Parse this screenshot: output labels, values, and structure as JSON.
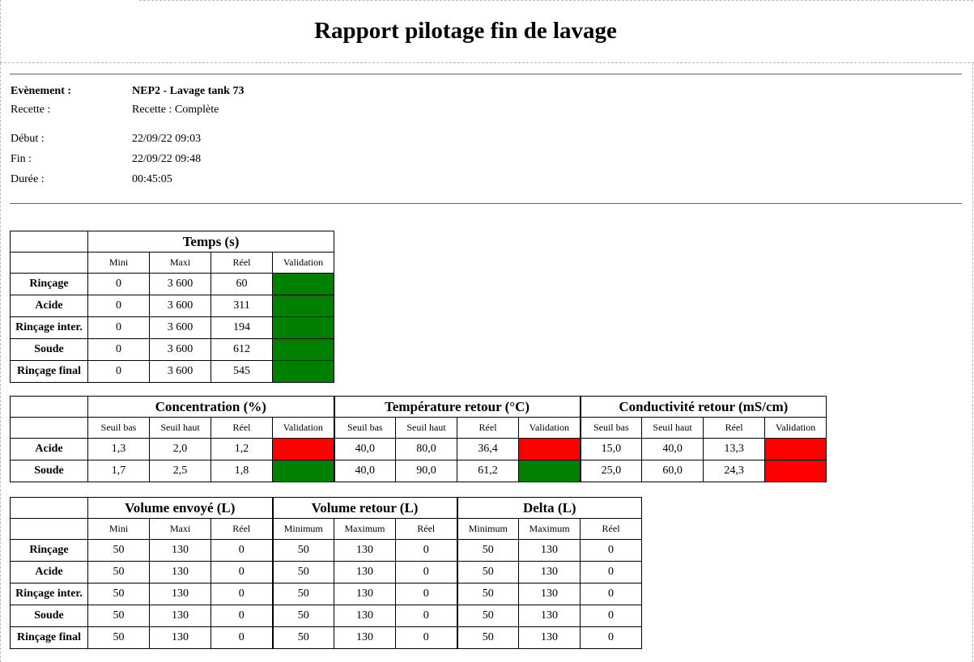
{
  "title": "Rapport pilotage fin de lavage",
  "info": {
    "event_label": "Evènement :",
    "event_value": "NEP2 - Lavage tank 73",
    "recipe_label": "Recette :",
    "recipe_value": "Recette : Complète",
    "start_label": "Début :",
    "start_value": "22/09/22 09:03",
    "end_label": "Fin :",
    "end_value": "22/09/22 09:48",
    "duration_label": "Durée :",
    "duration_value": "00:45:05"
  },
  "colors": {
    "ok": "#008000",
    "ko": "#ff0000"
  },
  "temps": {
    "title": "Temps (s)",
    "cols": [
      "Mini",
      "Maxi",
      "Réel",
      "Validation"
    ],
    "rows": [
      {
        "label": "Rinçage",
        "mini": "0",
        "maxi": "3 600",
        "reel": "60",
        "validation": "ok"
      },
      {
        "label": "Acide",
        "mini": "0",
        "maxi": "3 600",
        "reel": "311",
        "validation": "ok"
      },
      {
        "label": "Rinçage inter.",
        "mini": "0",
        "maxi": "3 600",
        "reel": "194",
        "validation": "ok"
      },
      {
        "label": "Soude",
        "mini": "0",
        "maxi": "3 600",
        "reel": "612",
        "validation": "ok"
      },
      {
        "label": "Rinçage final",
        "mini": "0",
        "maxi": "3 600",
        "reel": "545",
        "validation": "ok"
      }
    ]
  },
  "chimie": {
    "groups": [
      "Concentration (%)",
      "Température retour (°C)",
      "Conductivité retour (mS/cm)"
    ],
    "cols": [
      "Seuil bas",
      "Seuil haut",
      "Réel",
      "Validation"
    ],
    "rows": [
      {
        "label": "Acide",
        "concentration": {
          "bas": "1,3",
          "haut": "2,0",
          "reel": "1,2",
          "validation": "ko"
        },
        "temperature": {
          "bas": "40,0",
          "haut": "80,0",
          "reel": "36,4",
          "validation": "ko"
        },
        "conductivite": {
          "bas": "15,0",
          "haut": "40,0",
          "reel": "13,3",
          "validation": "ko"
        }
      },
      {
        "label": "Soude",
        "concentration": {
          "bas": "1,7",
          "haut": "2,5",
          "reel": "1,8",
          "validation": "ok"
        },
        "temperature": {
          "bas": "40,0",
          "haut": "90,0",
          "reel": "61,2",
          "validation": "ok"
        },
        "conductivite": {
          "bas": "25,0",
          "haut": "60,0",
          "reel": "24,3",
          "validation": "ko"
        }
      }
    ]
  },
  "volumes": {
    "groups": [
      "Volume envoyé (L)",
      "Volume retour (L)",
      "Delta (L)"
    ],
    "cols_envoye": [
      "Mini",
      "Maxi",
      "Réel"
    ],
    "cols_retour": [
      "Minimum",
      "Maximum",
      "Réel"
    ],
    "cols_delta": [
      "Minimum",
      "Maximum",
      "Réel"
    ],
    "rows": [
      {
        "label": "Rinçage",
        "v": [
          "50",
          "130",
          "0",
          "50",
          "130",
          "0",
          "50",
          "130",
          "0"
        ]
      },
      {
        "label": "Acide",
        "v": [
          "50",
          "130",
          "0",
          "50",
          "130",
          "0",
          "50",
          "130",
          "0"
        ]
      },
      {
        "label": "Rinçage inter.",
        "v": [
          "50",
          "130",
          "0",
          "50",
          "130",
          "0",
          "50",
          "130",
          "0"
        ]
      },
      {
        "label": "Soude",
        "v": [
          "50",
          "130",
          "0",
          "50",
          "130",
          "0",
          "50",
          "130",
          "0"
        ]
      },
      {
        "label": "Rinçage final",
        "v": [
          "50",
          "130",
          "0",
          "50",
          "130",
          "0",
          "50",
          "130",
          "0"
        ]
      }
    ]
  }
}
